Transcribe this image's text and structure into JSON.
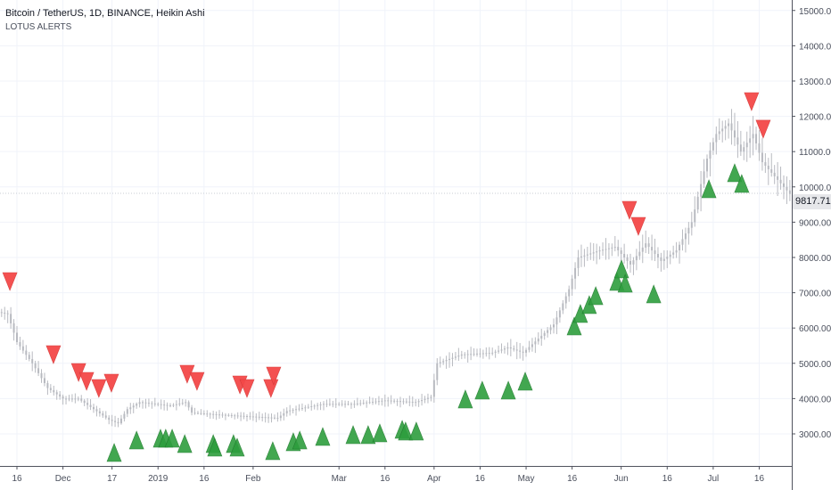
{
  "header": {
    "title": "Bitcoin / TetherUS, 1D, BINANCE, Heikin Ashi",
    "indicator": "LOTUS ALERTS"
  },
  "last_price": "9817.71",
  "colors": {
    "candle": "#b8bac0",
    "buy": "#2e9e3e",
    "sell": "#f44848",
    "grid": "#f0f3fa",
    "axis": "#50535e"
  },
  "chart_data": {
    "type": "candlestick",
    "title": "Bitcoin / TetherUS, 1D, BINANCE, Heikin Ashi",
    "x_unit": "days since 2018-11-16",
    "xlim": [
      -6,
      262
    ],
    "ylim": [
      1900,
      15300
    ],
    "y_ticks": [
      "3000.00",
      "4000.00",
      "5000.00",
      "6000.00",
      "7000.00",
      "8000.00",
      "9000.00",
      "10000.00",
      "11000.00",
      "12000.00",
      "13000.00",
      "14000.00",
      "15000.00"
    ],
    "y_tick_values": [
      3000,
      4000,
      5000,
      6000,
      7000,
      8000,
      9000,
      10000,
      11000,
      12000,
      13000,
      14000,
      15000
    ],
    "x_ticks": [
      {
        "day": 0,
        "label": "16"
      },
      {
        "day": 15,
        "label": "Dec"
      },
      {
        "day": 31,
        "label": "17"
      },
      {
        "day": 46,
        "label": "2019"
      },
      {
        "day": 61,
        "label": "16"
      },
      {
        "day": 77,
        "label": "Feb"
      },
      {
        "day": 105,
        "label": "Mar"
      },
      {
        "day": 120,
        "label": "16"
      },
      {
        "day": 136,
        "label": "Apr"
      },
      {
        "day": 151,
        "label": "16"
      },
      {
        "day": 166,
        "label": "May"
      },
      {
        "day": 181,
        "label": "16"
      },
      {
        "day": 197,
        "label": "Jun"
      },
      {
        "day": 212,
        "label": "16"
      },
      {
        "day": 227,
        "label": "Jul"
      },
      {
        "day": 242,
        "label": "16"
      }
    ],
    "price_path": [
      [
        -6,
        6450
      ],
      [
        -3,
        6400
      ],
      [
        0,
        5600
      ],
      [
        5,
        5000
      ],
      [
        10,
        4300
      ],
      [
        15,
        4000
      ],
      [
        20,
        4000
      ],
      [
        25,
        3700
      ],
      [
        30,
        3400
      ],
      [
        33,
        3300
      ],
      [
        36,
        3700
      ],
      [
        40,
        3900
      ],
      [
        45,
        3850
      ],
      [
        50,
        3800
      ],
      [
        55,
        3900
      ],
      [
        57,
        3600
      ],
      [
        65,
        3550
      ],
      [
        75,
        3500
      ],
      [
        85,
        3450
      ],
      [
        88,
        3650
      ],
      [
        100,
        3850
      ],
      [
        110,
        3850
      ],
      [
        120,
        3950
      ],
      [
        130,
        3900
      ],
      [
        135,
        4050
      ],
      [
        137,
        5000
      ],
      [
        145,
        5250
      ],
      [
        155,
        5300
      ],
      [
        160,
        5450
      ],
      [
        165,
        5300
      ],
      [
        170,
        5700
      ],
      [
        175,
        6100
      ],
      [
        180,
        7100
      ],
      [
        183,
        8000
      ],
      [
        190,
        8200
      ],
      [
        195,
        8300
      ],
      [
        200,
        7800
      ],
      [
        205,
        8400
      ],
      [
        210,
        7900
      ],
      [
        215,
        8200
      ],
      [
        220,
        9000
      ],
      [
        225,
        10800
      ],
      [
        228,
        11500
      ],
      [
        232,
        11800
      ],
      [
        236,
        11000
      ],
      [
        240,
        11500
      ],
      [
        243,
        10700
      ],
      [
        248,
        10200
      ],
      [
        252,
        9800
      ]
    ],
    "sell_signals": [
      [
        -2.3,
        7318
      ],
      [
        11.9,
        5247
      ],
      [
        20.1,
        4742
      ],
      [
        22.7,
        4490
      ],
      [
        26.7,
        4288
      ],
      [
        30.8,
        4439
      ],
      [
        55.5,
        4692
      ],
      [
        58.7,
        4490
      ],
      [
        72.7,
        4389
      ],
      [
        75.0,
        4288
      ],
      [
        82.8,
        4288
      ],
      [
        83.7,
        4641
      ],
      [
        199.7,
        9338
      ],
      [
        202.6,
        8883
      ],
      [
        239.5,
        12418
      ],
      [
        243.3,
        11636
      ]
    ],
    "buy_signals": [
      [
        31.7,
        2470
      ],
      [
        39.0,
        2823
      ],
      [
        46.8,
        2874
      ],
      [
        48.5,
        2874
      ],
      [
        50.6,
        2874
      ],
      [
        54.7,
        2722
      ],
      [
        64.0,
        2722
      ],
      [
        64.5,
        2621
      ],
      [
        70.6,
        2722
      ],
      [
        71.8,
        2621
      ],
      [
        83.4,
        2520
      ],
      [
        90.1,
        2773
      ],
      [
        92.2,
        2823
      ],
      [
        99.7,
        2924
      ],
      [
        109.6,
        2975
      ],
      [
        114.5,
        2975
      ],
      [
        118.3,
        3025
      ],
      [
        125.6,
        3126
      ],
      [
        126.7,
        3076
      ],
      [
        130.2,
        3076
      ],
      [
        146.2,
        3985
      ],
      [
        151.7,
        4237
      ],
      [
        160.2,
        4237
      ],
      [
        165.7,
        4490
      ],
      [
        181.7,
        6055
      ],
      [
        183.7,
        6409
      ],
      [
        186.6,
        6661
      ],
      [
        188.7,
        6914
      ],
      [
        195.6,
        7318
      ],
      [
        197.1,
        7671
      ],
      [
        198.3,
        7267
      ],
      [
        207.6,
        6964
      ],
      [
        225.6,
        9944
      ],
      [
        234.0,
        10398
      ],
      [
        236.3,
        10095
      ]
    ],
    "grid": true
  }
}
